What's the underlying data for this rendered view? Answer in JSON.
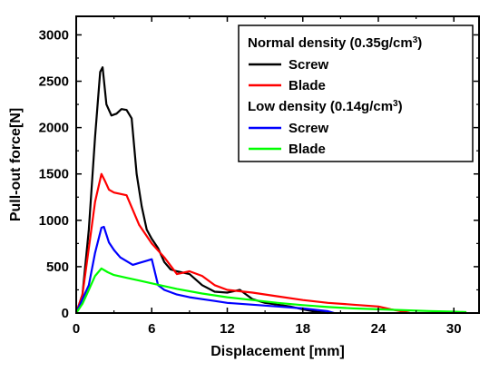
{
  "chart_data": {
    "type": "line",
    "xlabel": "Displacement [mm]",
    "ylabel": "Pull-out force[N]",
    "xlim": [
      0,
      32
    ],
    "ylim": [
      0,
      3200
    ],
    "xticks": [
      0,
      6,
      12,
      18,
      24,
      30
    ],
    "yticks": [
      0,
      500,
      1000,
      1500,
      2000,
      2500,
      3000
    ],
    "tick_labels_x": [
      "0",
      "6",
      "12",
      "18",
      "24",
      "30"
    ],
    "tick_labels_y": [
      "0",
      "500",
      "1000",
      "1500",
      "2000",
      "2500",
      "3000"
    ],
    "grid": false,
    "legend_position": "top-right",
    "legend": {
      "group1": {
        "pre": "Normal density (0.35g/cm",
        "sup": "3",
        "post": ")"
      },
      "group2": {
        "pre": "Low density (0.14g/cm",
        "sup": "3",
        "post": ")"
      }
    },
    "series": [
      {
        "name": "Screw",
        "group": "group1",
        "color": "#000000",
        "x": [
          0,
          0.5,
          1.0,
          1.5,
          1.9,
          2.1,
          2.4,
          2.8,
          3.2,
          3.6,
          4.0,
          4.4,
          4.8,
          5.2,
          5.6,
          6.0,
          6.5,
          7.0,
          7.5,
          8.0,
          9.0,
          10.0,
          11.0,
          12.0,
          13.0,
          14.0,
          15.0,
          16.0,
          17.0,
          18.0,
          19.0,
          20.0
        ],
        "y": [
          0,
          200,
          900,
          1900,
          2600,
          2650,
          2250,
          2130,
          2150,
          2200,
          2190,
          2100,
          1500,
          1150,
          900,
          800,
          700,
          550,
          470,
          450,
          420,
          300,
          230,
          220,
          250,
          150,
          110,
          90,
          70,
          40,
          15,
          0
        ]
      },
      {
        "name": "Blade",
        "group": "group1",
        "color": "#ff0000",
        "x": [
          0,
          0.5,
          1.0,
          1.5,
          2.0,
          2.3,
          2.6,
          3.0,
          4.0,
          5.0,
          6.0,
          7.0,
          8.0,
          9.0,
          10.0,
          11.0,
          12.0,
          14.0,
          16.0,
          18.0,
          20.0,
          22.0,
          24.0,
          25.0,
          26.0,
          26.5
        ],
        "y": [
          0,
          200,
          700,
          1200,
          1500,
          1420,
          1330,
          1300,
          1270,
          950,
          750,
          600,
          420,
          450,
          400,
          300,
          250,
          220,
          180,
          140,
          110,
          90,
          70,
          40,
          15,
          0
        ]
      },
      {
        "name": "Screw",
        "group": "group2",
        "color": "#0000ff",
        "x": [
          0,
          0.5,
          1.0,
          1.5,
          2.0,
          2.2,
          2.6,
          3.0,
          3.5,
          4.0,
          4.5,
          5.0,
          5.5,
          6.0,
          6.5,
          7.0,
          8.0,
          9.0,
          10.0,
          11.0,
          12.0,
          14.0,
          16.0,
          18.0,
          20.0,
          20.5
        ],
        "y": [
          0,
          150,
          300,
          650,
          920,
          930,
          760,
          680,
          600,
          560,
          520,
          540,
          560,
          580,
          300,
          250,
          200,
          170,
          150,
          130,
          110,
          90,
          70,
          50,
          20,
          0
        ]
      },
      {
        "name": "Blade",
        "group": "group2",
        "color": "#00ff00",
        "x": [
          0,
          0.5,
          1.0,
          1.5,
          2.0,
          2.5,
          3.0,
          4.0,
          5.0,
          6.0,
          8.0,
          10.0,
          12.0,
          14.0,
          16.0,
          18.0,
          20.0,
          22.0,
          24.0,
          26.0,
          28.0,
          30.0,
          31.0
        ],
        "y": [
          0,
          100,
          250,
          400,
          480,
          440,
          410,
          380,
          350,
          320,
          260,
          210,
          170,
          140,
          110,
          85,
          65,
          50,
          40,
          30,
          22,
          15,
          10
        ]
      }
    ]
  }
}
